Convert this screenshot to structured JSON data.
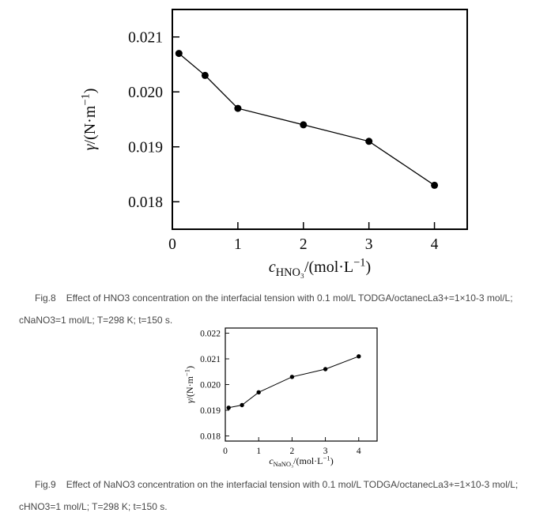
{
  "figures": [
    {
      "caption_label": "Fig.8",
      "caption_text": "Effect of HNO3 concentration on the interfacial tension with 0.1 mol/L TODGA/octanecLa3+=1×10-3 mol/L; cNaNO3=1 mol/L; T=298 K; t=150 s."
    },
    {
      "caption_label": "Fig.9",
      "caption_text": "Effect of NaNO3 concentration on the interfacial tension with 0.1 mol/L TODGA/octanecLa3+=1×10-3 mol/L; cHNO3=1 mol/L; T=298 K; t=150 s."
    }
  ],
  "chart_data": [
    {
      "type": "line",
      "title": "",
      "x": [
        0.1,
        0.5,
        1,
        2,
        3,
        4
      ],
      "y": [
        0.0207,
        0.0203,
        0.0197,
        0.0194,
        0.0191,
        0.0183
      ],
      "xlabel": "cHNO₃/(mol·L⁻¹)",
      "ylabel": "γ/(N·m⁻¹)",
      "xlabel_parts": [
        [
          "i",
          "c"
        ],
        [
          "sub",
          "HNO₃"
        ],
        [
          "n",
          "/(mol·L"
        ],
        [
          "sup",
          "−1"
        ],
        [
          "n",
          ")"
        ]
      ],
      "ylabel_parts": [
        [
          "i",
          "γ"
        ],
        [
          "n",
          "/(N·m"
        ],
        [
          "sup",
          "−1"
        ],
        [
          "n",
          ")"
        ]
      ],
      "xlim": [
        0,
        4.5
      ],
      "ylim": [
        0.0175,
        0.0215
      ],
      "xticks": [
        "0",
        "1",
        "2",
        "3",
        "4"
      ],
      "yticks": [
        "0.018",
        "0.019",
        "0.020",
        "0.021"
      ],
      "grid": false,
      "legend": null,
      "marker": "filled-circle",
      "line_color": "#000000"
    },
    {
      "type": "line",
      "title": "",
      "x": [
        0.1,
        0.5,
        1,
        2,
        3,
        4
      ],
      "y": [
        0.0191,
        0.0192,
        0.0197,
        0.0203,
        0.0206,
        0.0211
      ],
      "xlabel": "cNaNO₃/(mol·L⁻¹)",
      "ylabel": "γ/(N·m⁻¹)",
      "xlabel_parts": [
        [
          "i",
          "c"
        ],
        [
          "sub",
          "NaNO₃"
        ],
        [
          "n",
          "/(mol·L"
        ],
        [
          "sup",
          "−1"
        ],
        [
          "n",
          ")"
        ]
      ],
      "ylabel_parts": [
        [
          "i",
          "γ"
        ],
        [
          "n",
          "/(N·m"
        ],
        [
          "sup",
          "−1"
        ],
        [
          "n",
          ")"
        ]
      ],
      "xlim": [
        0,
        4.55
      ],
      "ylim": [
        0.0178,
        0.0222
      ],
      "xticks": [
        "0",
        "1",
        "2",
        "3",
        "4"
      ],
      "yticks": [
        "0.018",
        "0.019",
        "0.020",
        "0.021",
        "0.022"
      ],
      "grid": false,
      "legend": null,
      "marker": "filled-circle",
      "line_color": "#000000"
    }
  ]
}
